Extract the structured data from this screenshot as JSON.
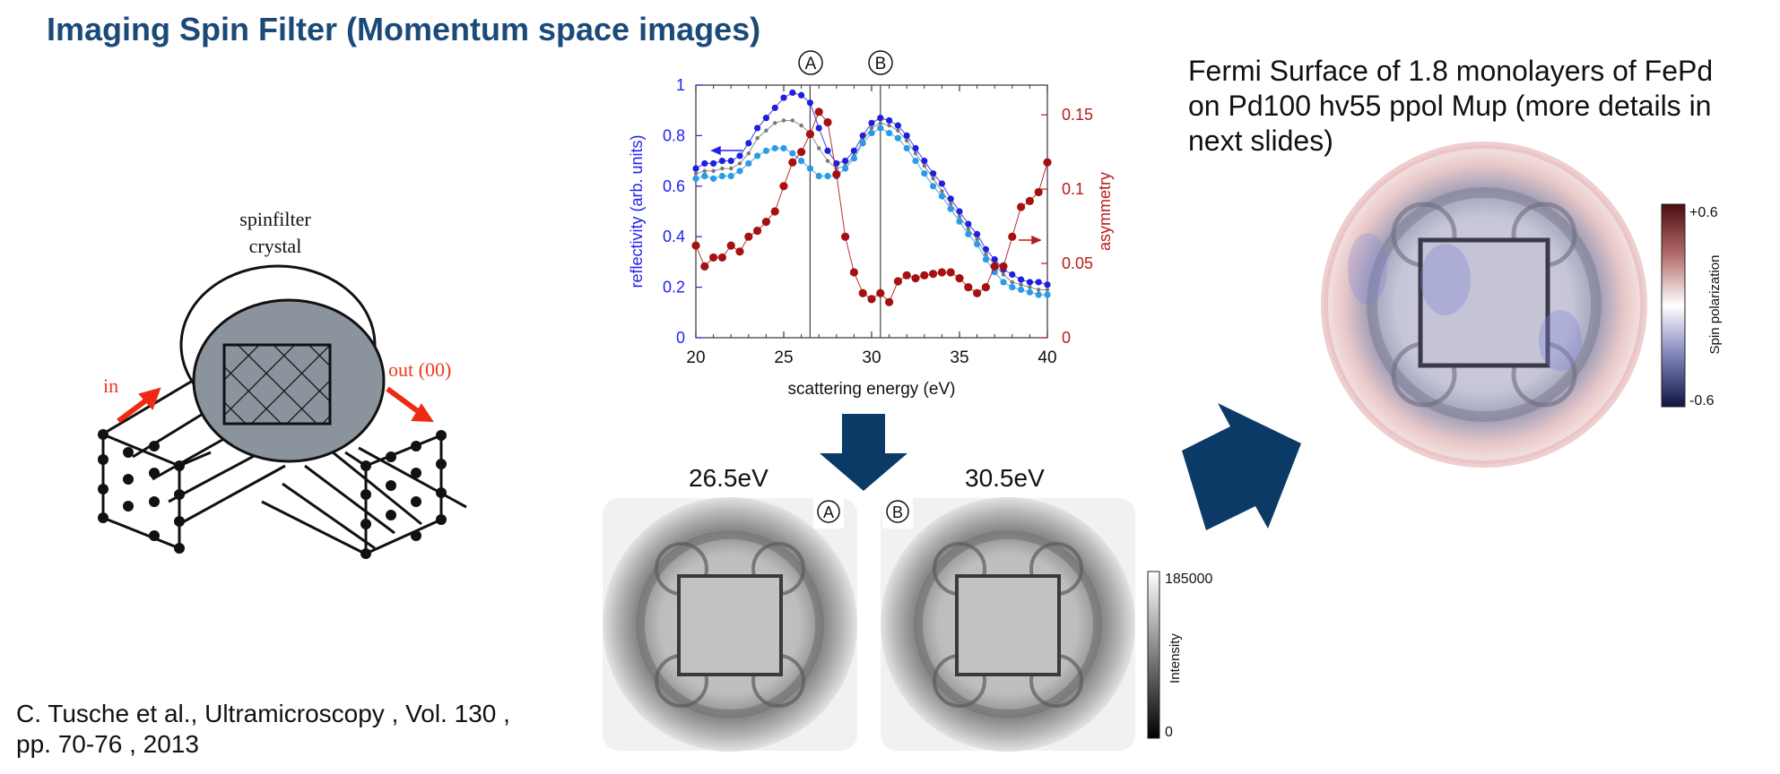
{
  "slide": {
    "title": "Imaging Spin Filter (Momentum space images)",
    "citation_line1": "C. Tusche et al., Ultramicroscopy , Vol. 130 ,",
    "citation_line2": "pp. 70-76 , 2013",
    "fermi_title_line1": "Fermi Surface of 1.8 monolayers of FePd",
    "fermi_title_line2": "on Pd100 hv55 ppol Mup (more details in",
    "fermi_title_line3": "next slides)"
  },
  "diagram": {
    "crystal_label_line1": "spinfilter",
    "crystal_label_line2": "crystal",
    "in_label": "in",
    "out_label": "out (00)"
  },
  "markers": {
    "a": "A",
    "b": "B"
  },
  "images": {
    "label_a": "26.5eV",
    "label_b": "30.5eV",
    "intensity_bar": {
      "max_label": "185000",
      "min_label": "0",
      "title": "Intensity"
    },
    "spin_bar": {
      "max_label": "+0.6",
      "min_label": "-0.6",
      "title": "Spin polarization"
    }
  },
  "colors": {
    "title": "#1b4a78",
    "arrow": "#0b3a66",
    "series_dark_blue": "#1e1ee0",
    "series_gray": "#777777",
    "series_light_blue": "#2a9be8",
    "series_asym": "#a51010",
    "left_axis": "#2222ee",
    "right_axis": "#b81c1c",
    "in_out_arrows": "#ee2a12"
  },
  "chart_data": {
    "type": "line",
    "xlabel": "scattering energy (eV)",
    "ylabel": "reflectivity (arb. units)",
    "y2label": "asymmetry",
    "xlim": [
      20,
      40
    ],
    "ylim": [
      0,
      1
    ],
    "y2lim": [
      0,
      0.17
    ],
    "xticks": [
      "20",
      "25",
      "30",
      "35",
      "40"
    ],
    "yticks": [
      "0",
      "0.2",
      "0.4",
      "0.6",
      "0.8",
      "1"
    ],
    "y2ticks": [
      "0",
      "0.05",
      "0.1",
      "0.15"
    ],
    "vlines": [
      26.5,
      30.5
    ],
    "x": [
      20,
      20.5,
      21,
      21.5,
      22,
      22.5,
      23,
      23.5,
      24,
      24.5,
      25,
      25.5,
      26,
      26.5,
      27,
      27.5,
      28,
      28.5,
      29,
      29.5,
      30,
      30.5,
      31,
      31.5,
      32,
      32.5,
      33,
      33.5,
      34,
      34.5,
      35,
      35.5,
      36,
      36.5,
      37,
      37.5,
      38,
      38.5,
      39,
      39.5,
      40
    ],
    "series": [
      {
        "axis": "left",
        "values": [
          0.67,
          0.69,
          0.69,
          0.7,
          0.7,
          0.72,
          0.77,
          0.83,
          0.87,
          0.91,
          0.95,
          0.97,
          0.96,
          0.93,
          0.83,
          0.74,
          0.69,
          0.7,
          0.74,
          0.8,
          0.85,
          0.87,
          0.86,
          0.84,
          0.8,
          0.75,
          0.7,
          0.65,
          0.61,
          0.55,
          0.5,
          0.45,
          0.41,
          0.35,
          0.31,
          0.27,
          0.25,
          0.23,
          0.22,
          0.22,
          0.21
        ]
      },
      {
        "axis": "left",
        "values": [
          0.65,
          0.66,
          0.66,
          0.67,
          0.67,
          0.69,
          0.73,
          0.79,
          0.82,
          0.85,
          0.86,
          0.86,
          0.84,
          0.81,
          0.75,
          0.7,
          0.67,
          0.68,
          0.72,
          0.78,
          0.83,
          0.85,
          0.84,
          0.82,
          0.78,
          0.73,
          0.68,
          0.63,
          0.58,
          0.53,
          0.48,
          0.43,
          0.39,
          0.33,
          0.29,
          0.25,
          0.22,
          0.21,
          0.2,
          0.19,
          0.19
        ]
      },
      {
        "axis": "left",
        "values": [
          0.63,
          0.64,
          0.63,
          0.64,
          0.64,
          0.66,
          0.69,
          0.72,
          0.74,
          0.75,
          0.75,
          0.73,
          0.7,
          0.67,
          0.64,
          0.64,
          0.64,
          0.67,
          0.71,
          0.77,
          0.81,
          0.83,
          0.81,
          0.79,
          0.75,
          0.7,
          0.65,
          0.6,
          0.56,
          0.51,
          0.46,
          0.41,
          0.37,
          0.31,
          0.26,
          0.22,
          0.2,
          0.19,
          0.18,
          0.17,
          0.17
        ]
      },
      {
        "axis": "right",
        "values": [
          0.062,
          0.048,
          0.054,
          0.054,
          0.062,
          0.058,
          0.068,
          0.072,
          0.078,
          0.085,
          0.102,
          0.118,
          0.125,
          0.137,
          0.152,
          0.145,
          0.11,
          0.068,
          0.044,
          0.03,
          0.026,
          0.03,
          0.024,
          0.038,
          0.042,
          0.04,
          0.042,
          0.043,
          0.044,
          0.044,
          0.04,
          0.034,
          0.03,
          0.034,
          0.048,
          0.048,
          0.068,
          0.088,
          0.092,
          0.098,
          0.118
        ]
      }
    ]
  }
}
